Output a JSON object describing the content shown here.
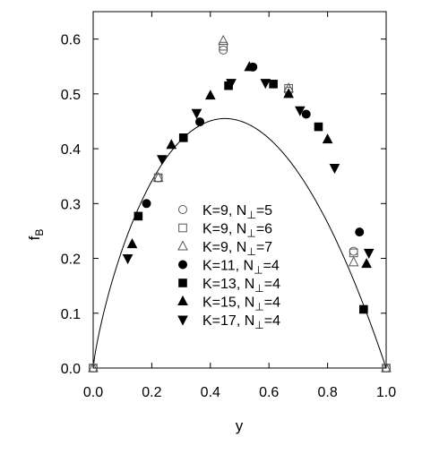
{
  "chart_data": {
    "type": "scatter",
    "title": "",
    "xlabel": "y",
    "ylabel": "f",
    "ylabel_sub": "B",
    "xlim": [
      0.0,
      1.0
    ],
    "ylim": [
      0.0,
      0.65
    ],
    "grid": false,
    "legend_position": "center-right",
    "x_ticks": [
      0.0,
      0.2,
      0.4,
      0.6,
      0.8,
      1.0
    ],
    "x_tick_labels": [
      "0.0",
      "0.2",
      "0.4",
      "0.6",
      "0.8",
      "1.0"
    ],
    "y_ticks": [
      0.0,
      0.1,
      0.2,
      0.3,
      0.4,
      0.5,
      0.6
    ],
    "y_tick_labels": [
      "0.0",
      "0.1",
      "0.2",
      "0.3",
      "0.4",
      "0.5",
      "0.6"
    ],
    "series": [
      {
        "name": "K=9, N⊥=5",
        "label_main": "K=9, N",
        "label_sub": "⊥",
        "label_tail": "=5",
        "marker": "circle-open",
        "x": [
          0.0,
          0.222,
          0.444,
          0.667,
          0.889,
          1.0
        ],
        "y": [
          0.0,
          0.347,
          0.58,
          0.505,
          0.213,
          0.0
        ]
      },
      {
        "name": "K=9, N⊥=6",
        "label_main": "K=9, N",
        "label_sub": "⊥",
        "label_tail": "=6",
        "marker": "square-open",
        "x": [
          0.0,
          0.222,
          0.444,
          0.667,
          0.889,
          1.0
        ],
        "y": [
          0.0,
          0.347,
          0.587,
          0.51,
          0.21,
          0.0
        ]
      },
      {
        "name": "K=9, N⊥=7",
        "label_main": "K=9, N",
        "label_sub": "⊥",
        "label_tail": "=7",
        "marker": "triangle-up-open",
        "x": [
          0.0,
          0.222,
          0.444,
          0.667,
          0.889,
          1.0
        ],
        "y": [
          0.0,
          0.347,
          0.597,
          0.51,
          0.193,
          0.0
        ]
      },
      {
        "name": "K=11, N⊥=4",
        "label_main": "K=11, N",
        "label_sub": "⊥",
        "label_tail": "=4",
        "marker": "circle-filled",
        "x": [
          0.182,
          0.364,
          0.545,
          0.727,
          0.909
        ],
        "y": [
          0.3,
          0.449,
          0.549,
          0.463,
          0.248
        ]
      },
      {
        "name": "K=13, N⊥=4",
        "label_main": "K=13, N",
        "label_sub": "⊥",
        "label_tail": "=4",
        "marker": "square-filled",
        "x": [
          0.154,
          0.308,
          0.462,
          0.615,
          0.769,
          0.923
        ],
        "y": [
          0.277,
          0.42,
          0.515,
          0.518,
          0.44,
          0.107
        ]
      },
      {
        "name": "K=15, N⊥=4",
        "label_main": "K=15, N",
        "label_sub": "⊥",
        "label_tail": "=4",
        "marker": "triangle-up-filled",
        "x": [
          0.133,
          0.267,
          0.4,
          0.533,
          0.667,
          0.8,
          0.933
        ],
        "y": [
          0.226,
          0.407,
          0.497,
          0.549,
          0.5,
          0.417,
          0.19
        ]
      },
      {
        "name": "K=17, N⊥=4",
        "label_main": "K=17, N",
        "label_sub": "⊥",
        "label_tail": "=4",
        "marker": "triangle-down-filled",
        "x": [
          0.118,
          0.235,
          0.353,
          0.471,
          0.588,
          0.706,
          0.824,
          0.941
        ],
        "y": [
          0.2,
          0.381,
          0.465,
          0.52,
          0.52,
          0.47,
          0.365,
          0.21
        ]
      }
    ],
    "curve": {
      "type": "line",
      "function": "f(y) = 4*0.455*y*(1-y)^1.1 approx.",
      "peak_x": 0.45,
      "peak_y": 0.455
    }
  }
}
